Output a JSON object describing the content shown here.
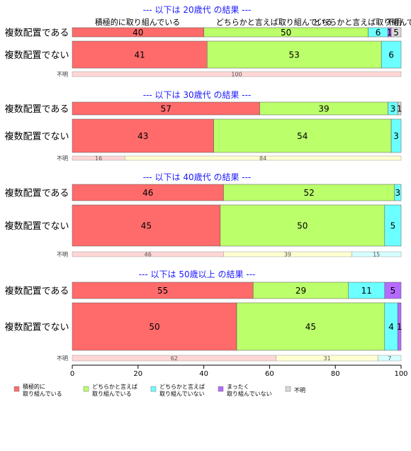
{
  "chart_data": {
    "type": "bar",
    "orientation": "horizontal",
    "stacked": true,
    "xlim": [
      0,
      100
    ],
    "xticks": [
      "0",
      "20",
      "40",
      "60",
      "80",
      "100"
    ],
    "legend_position": "bottom",
    "series_names": [
      "積極的に\n取り組んでいる",
      "どちらかと言えば\n取り組んでいる",
      "どちらかと言えば\n取り組んでいない",
      "まったく\n取り組んでいない",
      "不明"
    ],
    "colors": [
      "#ff6b6b",
      "#bbff6b",
      "#6bffff",
      "#b56bff",
      "#d9d9d9"
    ],
    "unknown_colors": [
      "#ffd6d6",
      "#ffffd1",
      "#d6ffff",
      "#e8d6ff",
      "#ececec"
    ],
    "header_labels": [
      "積極的に取り組んでいる",
      "どちらかと言えば取り組んでいる",
      "どちらかと言えば取り組んでいない",
      "不明"
    ],
    "unknown_label": "不明",
    "panels": [
      {
        "title": "--- 以下は 20歳代 の結果 ---",
        "rows": [
          {
            "label": "複数配置である",
            "values": [
              40,
              50,
              6,
              1,
              5
            ],
            "data_labels": [
              "40",
              "50",
              "6",
              "1",
              "5"
            ]
          },
          {
            "label": "複数配置でない",
            "values": [
              41,
              53,
              6,
              0,
              0
            ],
            "data_labels": [
              "41",
              "53",
              "6",
              "",
              ""
            ]
          }
        ],
        "unknown": {
          "values": [
            100,
            0,
            0
          ],
          "data_labels": [
            "100",
            "",
            ""
          ]
        }
      },
      {
        "title": "--- 以下は 30歳代 の結果 ---",
        "rows": [
          {
            "label": "複数配置である",
            "values": [
              57,
              39,
              3,
              0,
              1
            ],
            "data_labels": [
              "57",
              "39",
              "3",
              "",
              "1"
            ]
          },
          {
            "label": "複数配置でない",
            "values": [
              43,
              54,
              3,
              0,
              0
            ],
            "data_labels": [
              "43",
              "54",
              "3",
              "",
              ""
            ]
          }
        ],
        "unknown": {
          "values": [
            16,
            84,
            0
          ],
          "data_labels": [
            "16",
            "84",
            ""
          ]
        }
      },
      {
        "title": "--- 以下は 40歳代 の結果 ---",
        "rows": [
          {
            "label": "複数配置である",
            "values": [
              46,
              52,
              3,
              0,
              0
            ],
            "data_labels": [
              "46",
              "52",
              "3",
              "",
              ""
            ]
          },
          {
            "label": "複数配置でない",
            "values": [
              45,
              50,
              5,
              0,
              0
            ],
            "data_labels": [
              "45",
              "50",
              "5",
              "",
              ""
            ]
          }
        ],
        "unknown": {
          "values": [
            46,
            39,
            15
          ],
          "data_labels": [
            "46",
            "39",
            "15"
          ]
        }
      },
      {
        "title": "--- 以下は 50歳以上 の結果 ---",
        "rows": [
          {
            "label": "複数配置である",
            "values": [
              55,
              29,
              11,
              5,
              0
            ],
            "data_labels": [
              "55",
              "29",
              "11",
              "5",
              ""
            ]
          },
          {
            "label": "複数配置でない",
            "values": [
              50,
              45,
              4,
              1,
              0
            ],
            "data_labels": [
              "50",
              "45",
              "4",
              "1",
              ""
            ]
          }
        ],
        "unknown": {
          "values": [
            62,
            31,
            7
          ],
          "data_labels": [
            "62",
            "31",
            "7"
          ]
        }
      }
    ]
  }
}
